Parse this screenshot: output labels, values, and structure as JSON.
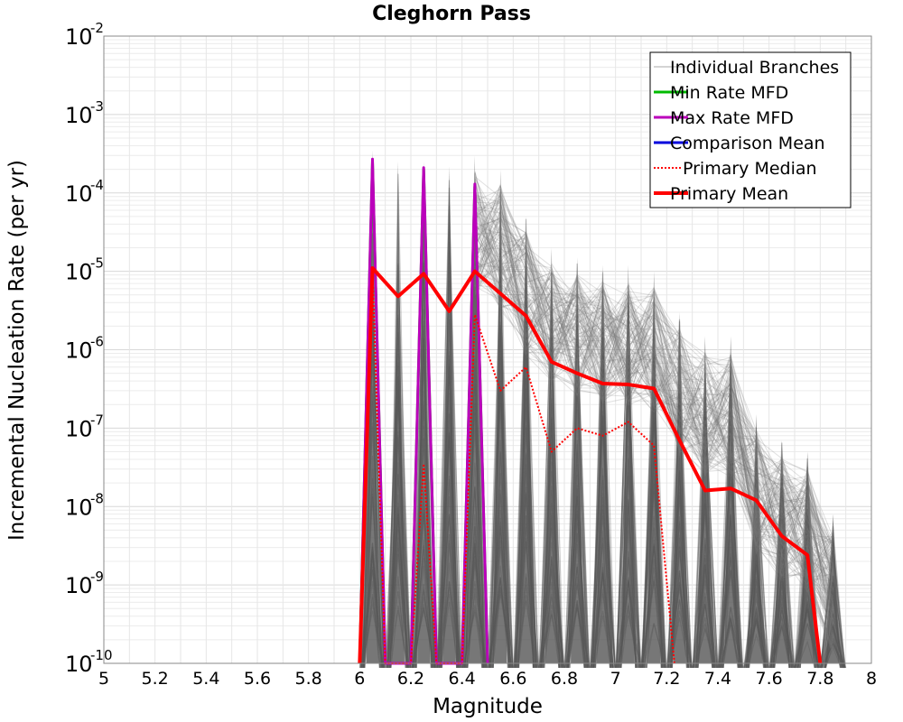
{
  "chart_data": {
    "type": "line",
    "title": "Cleghorn Pass",
    "xlabel": "Magnitude",
    "ylabel": "Incremental Nucleation Rate (per yr)",
    "xlim": [
      5,
      8
    ],
    "ylim": [
      1e-10,
      0.01
    ],
    "yscale": "log",
    "grid": true,
    "legend_position": "top-right",
    "x_ticks": [
      "5",
      "5.2",
      "5.4",
      "5.6",
      "5.8",
      "6",
      "6.2",
      "6.4",
      "6.6",
      "6.8",
      "7",
      "7.2",
      "7.4",
      "7.6",
      "7.8",
      "8"
    ],
    "y_ticks": [
      {
        "base": "10",
        "exp": "-10"
      },
      {
        "base": "10",
        "exp": "-9"
      },
      {
        "base": "10",
        "exp": "-8"
      },
      {
        "base": "10",
        "exp": "-7"
      },
      {
        "base": "10",
        "exp": "-6"
      },
      {
        "base": "10",
        "exp": "-5"
      },
      {
        "base": "10",
        "exp": "-4"
      },
      {
        "base": "10",
        "exp": "-3"
      },
      {
        "base": "10",
        "exp": "-2"
      }
    ],
    "series": [
      {
        "name": "Individual Branches",
        "color": "#555555",
        "style": "solid",
        "peaks": [
          {
            "x": 6.05,
            "y": 0.00035
          },
          {
            "x": 6.15,
            "y": 0.00025
          },
          {
            "x": 6.25,
            "y": 0.00025
          },
          {
            "x": 6.35,
            "y": 0.00022
          },
          {
            "x": 6.45,
            "y": 0.0003
          },
          {
            "x": 6.55,
            "y": 0.0002
          },
          {
            "x": 6.65,
            "y": 5e-05
          },
          {
            "x": 6.75,
            "y": 2e-05
          },
          {
            "x": 6.85,
            "y": 1.5e-05
          },
          {
            "x": 6.95,
            "y": 1.2e-05
          },
          {
            "x": 7.05,
            "y": 1.2e-05
          },
          {
            "x": 7.15,
            "y": 1e-05
          },
          {
            "x": 7.25,
            "y": 3e-06
          },
          {
            "x": 7.35,
            "y": 1.5e-06
          },
          {
            "x": 7.45,
            "y": 1.5e-06
          },
          {
            "x": 7.55,
            "y": 1.5e-07
          },
          {
            "x": 7.65,
            "y": 7e-08
          },
          {
            "x": 7.75,
            "y": 5e-08
          },
          {
            "x": 7.85,
            "y": 8e-09
          }
        ]
      },
      {
        "name": "Min Rate MFD",
        "color": "#00bb00",
        "style": "solid",
        "x": [
          6.0,
          6.05,
          6.1,
          6.2,
          6.25,
          6.3,
          6.4,
          6.45,
          6.5
        ],
        "y": [
          1e-10,
          0.00025,
          1e-10,
          1e-10,
          0.0002,
          1e-10,
          1e-10,
          0.00012,
          1e-10
        ]
      },
      {
        "name": "Max Rate MFD",
        "color": "#bb00bb",
        "style": "solid",
        "x": [
          6.0,
          6.05,
          6.1,
          6.2,
          6.25,
          6.3,
          6.4,
          6.45,
          6.5
        ],
        "y": [
          1e-10,
          0.00027,
          1e-10,
          1e-10,
          0.00021,
          1e-10,
          1e-10,
          0.00013,
          1e-10
        ]
      },
      {
        "name": "Comparison Mean",
        "color": "#0000dd",
        "style": "solid",
        "x": [],
        "y": []
      },
      {
        "name": "Primary Median",
        "color": "#ff0000",
        "style": "dotted",
        "x": [
          6.0,
          6.05,
          6.1,
          6.2,
          6.25,
          6.3,
          6.4,
          6.45,
          6.55,
          6.65,
          6.75,
          6.85,
          6.95,
          7.05,
          7.15,
          7.23
        ],
        "y": [
          1e-10,
          1e-05,
          1e-10,
          1e-10,
          3.5e-08,
          1e-10,
          1e-10,
          2.8e-06,
          3e-07,
          6e-07,
          5e-08,
          1e-07,
          8e-08,
          1.2e-07,
          6e-08,
          1e-10
        ]
      },
      {
        "name": "Primary Mean",
        "color": "#ff0000",
        "style": "solid",
        "x": [
          6.0,
          6.05,
          6.15,
          6.25,
          6.35,
          6.45,
          6.55,
          6.65,
          6.75,
          6.85,
          6.95,
          7.05,
          7.15,
          7.25,
          7.35,
          7.45,
          7.55,
          7.65,
          7.75,
          7.8
        ],
        "y": [
          1e-10,
          1.1e-05,
          4.8e-06,
          9.3e-06,
          3.1e-06,
          1e-05,
          5.2e-06,
          2.7e-06,
          7e-07,
          5e-07,
          3.7e-07,
          3.6e-07,
          3.2e-07,
          7e-08,
          1.6e-08,
          1.7e-08,
          1.2e-08,
          4.2e-09,
          2.4e-09,
          1e-10
        ]
      }
    ]
  }
}
